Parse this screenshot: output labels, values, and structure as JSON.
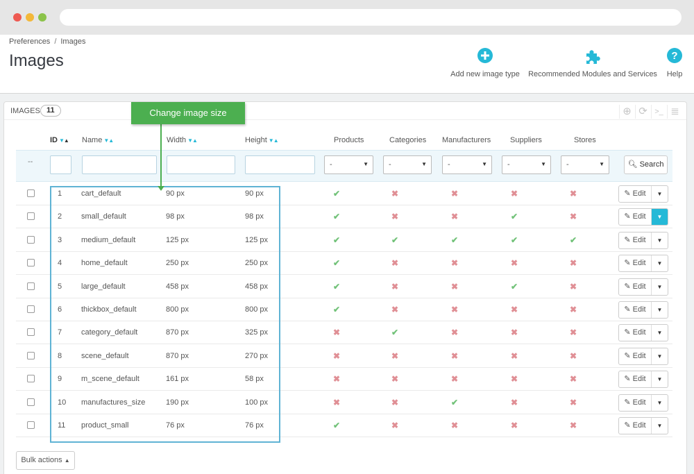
{
  "breadcrumb": [
    "Preferences",
    "Images"
  ],
  "breadcrumb_sep": "/",
  "page_title": "Images",
  "toolbar": {
    "add_label": "Add new image type",
    "modules_label": "Recommended Modules and Services",
    "help_label": "Help"
  },
  "panel": {
    "title": "IMAGES",
    "count": "11"
  },
  "callout": "Change image size",
  "columns": {
    "id": "ID",
    "name": "Name",
    "width": "Width",
    "height": "Height",
    "products": "Products",
    "categories": "Categories",
    "manufacturers": "Manufacturers",
    "suppliers": "Suppliers",
    "stores": "Stores"
  },
  "filters": {
    "dash": "--",
    "select_value": "-",
    "search_label": "Search"
  },
  "rows": [
    {
      "id": "1",
      "name": "cart_default",
      "width": "90 px",
      "height": "90 px",
      "flags": [
        true,
        false,
        false,
        false,
        false
      ]
    },
    {
      "id": "2",
      "name": "small_default",
      "width": "98 px",
      "height": "98 px",
      "flags": [
        true,
        false,
        false,
        true,
        false
      ]
    },
    {
      "id": "3",
      "name": "medium_default",
      "width": "125 px",
      "height": "125 px",
      "flags": [
        true,
        true,
        true,
        true,
        true
      ]
    },
    {
      "id": "4",
      "name": "home_default",
      "width": "250 px",
      "height": "250 px",
      "flags": [
        true,
        false,
        false,
        false,
        false
      ]
    },
    {
      "id": "5",
      "name": "large_default",
      "width": "458 px",
      "height": "458 px",
      "flags": [
        true,
        false,
        false,
        true,
        false
      ]
    },
    {
      "id": "6",
      "name": "thickbox_default",
      "width": "800 px",
      "height": "800 px",
      "flags": [
        true,
        false,
        false,
        false,
        false
      ]
    },
    {
      "id": "7",
      "name": "category_default",
      "width": "870 px",
      "height": "325 px",
      "flags": [
        false,
        true,
        false,
        false,
        false
      ]
    },
    {
      "id": "8",
      "name": "scene_default",
      "width": "870 px",
      "height": "270 px",
      "flags": [
        false,
        false,
        false,
        false,
        false
      ]
    },
    {
      "id": "9",
      "name": "m_scene_default",
      "width": "161 px",
      "height": "58 px",
      "flags": [
        false,
        false,
        false,
        false,
        false
      ]
    },
    {
      "id": "10",
      "name": "manufactures_size",
      "width": "190 px",
      "height": "100 px",
      "flags": [
        false,
        false,
        true,
        false,
        false
      ]
    },
    {
      "id": "11",
      "name": "product_small",
      "width": "76 px",
      "height": "76 px",
      "flags": [
        true,
        false,
        false,
        false,
        false
      ]
    }
  ],
  "edit_label": "Edit",
  "bulk_label": "Bulk actions",
  "colors": {
    "accent": "#25b9d7",
    "callout": "#4caf50",
    "yes": "#72c279",
    "no": "#e08f95"
  }
}
